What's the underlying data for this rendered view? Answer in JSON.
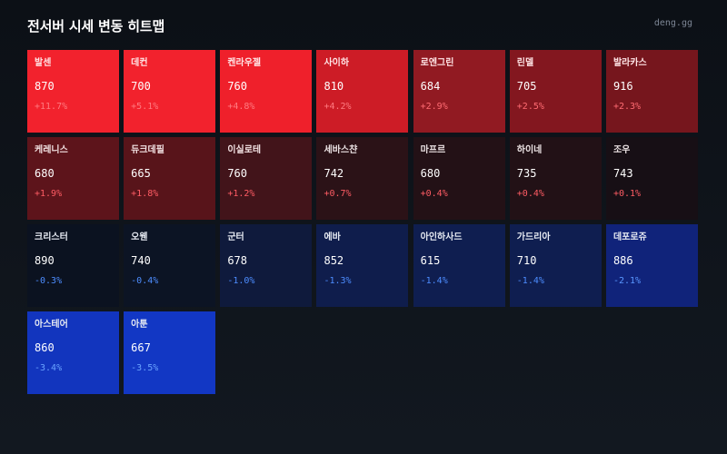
{
  "header": {
    "title": "전서버 시세 변동 히트맵",
    "brand": "deng.gg"
  },
  "cells": [
    {
      "name": "발센",
      "price": "870",
      "change": "+11.7%",
      "bg": "#f2222d",
      "name_color": "#ffe5e6",
      "price_color": "#ffffff",
      "change_color": "#ff7a80"
    },
    {
      "name": "데컨",
      "price": "700",
      "change": "+5.1%",
      "bg": "#f2222d",
      "name_color": "#ffe5e6",
      "price_color": "#ffffff",
      "change_color": "#ff7a80"
    },
    {
      "name": "켄라우젤",
      "price": "760",
      "change": "+4.8%",
      "bg": "#ef202b",
      "name_color": "#ffe5e6",
      "price_color": "#ffffff",
      "change_color": "#ff7a80"
    },
    {
      "name": "사이하",
      "price": "810",
      "change": "+4.2%",
      "bg": "#cd1c26",
      "name_color": "#ffe5e6",
      "price_color": "#ffffff",
      "change_color": "#ff7a80"
    },
    {
      "name": "로엔그린",
      "price": "684",
      "change": "+2.9%",
      "bg": "#911a22",
      "name_color": "#ffe5e6",
      "price_color": "#ffffff",
      "change_color": "#ff6b72"
    },
    {
      "name": "린델",
      "price": "705",
      "change": "+2.5%",
      "bg": "#83171f",
      "name_color": "#ffe5e6",
      "price_color": "#ffffff",
      "change_color": "#ff6b72"
    },
    {
      "name": "발라카스",
      "price": "916",
      "change": "+2.3%",
      "bg": "#76161d",
      "name_color": "#ffe5e6",
      "price_color": "#ffffff",
      "change_color": "#ff6b72"
    },
    {
      "name": "케레니스",
      "price": "680",
      "change": "+1.9%",
      "bg": "#5d141b",
      "name_color": "#f3e2e3",
      "price_color": "#ffffff",
      "change_color": "#ff5c64"
    },
    {
      "name": "듀크데필",
      "price": "665",
      "change": "+1.8%",
      "bg": "#58141a",
      "name_color": "#f3e2e3",
      "price_color": "#ffffff",
      "change_color": "#ff5c64"
    },
    {
      "name": "이실로테",
      "price": "760",
      "change": "+1.2%",
      "bg": "#42141a",
      "name_color": "#f3e2e3",
      "price_color": "#ffffff",
      "change_color": "#ff5c64"
    },
    {
      "name": "세바스챤",
      "price": "742",
      "change": "+0.7%",
      "bg": "#2b1217",
      "name_color": "#ece3e4",
      "price_color": "#ffffff",
      "change_color": "#ff5c64"
    },
    {
      "name": "마프르",
      "price": "680",
      "change": "+0.4%",
      "bg": "#231116",
      "name_color": "#ece3e4",
      "price_color": "#ffffff",
      "change_color": "#ff5c64"
    },
    {
      "name": "하이네",
      "price": "735",
      "change": "+0.4%",
      "bg": "#221116",
      "name_color": "#ece3e4",
      "price_color": "#ffffff",
      "change_color": "#ff5c64"
    },
    {
      "name": "조우",
      "price": "743",
      "change": "+0.1%",
      "bg": "#170f15",
      "name_color": "#ece3e4",
      "price_color": "#ffffff",
      "change_color": "#ff5c64"
    },
    {
      "name": "크리스터",
      "price": "890",
      "change": "-0.3%",
      "bg": "#0b1220",
      "name_color": "#e6eaf2",
      "price_color": "#ffffff",
      "change_color": "#4d8dff"
    },
    {
      "name": "오웬",
      "price": "740",
      "change": "-0.4%",
      "bg": "#0c1424",
      "name_color": "#e6eaf2",
      "price_color": "#ffffff",
      "change_color": "#4d8dff"
    },
    {
      "name": "군터",
      "price": "678",
      "change": "-1.0%",
      "bg": "#0f1a3c",
      "name_color": "#e6eaf2",
      "price_color": "#ffffff",
      "change_color": "#4d8dff"
    },
    {
      "name": "에바",
      "price": "852",
      "change": "-1.3%",
      "bg": "#0f1d4c",
      "name_color": "#e6eaf2",
      "price_color": "#ffffff",
      "change_color": "#4d8dff"
    },
    {
      "name": "아인하사드",
      "price": "615",
      "change": "-1.4%",
      "bg": "#0f1e50",
      "name_color": "#e6eaf2",
      "price_color": "#ffffff",
      "change_color": "#4d8dff"
    },
    {
      "name": "가드리아",
      "price": "710",
      "change": "-1.4%",
      "bg": "#0f1e50",
      "name_color": "#e6eaf2",
      "price_color": "#ffffff",
      "change_color": "#4d8dff"
    },
    {
      "name": "데포로쥬",
      "price": "886",
      "change": "-2.1%",
      "bg": "#10237a",
      "name_color": "#e6eaf2",
      "price_color": "#ffffff",
      "change_color": "#5a97ff"
    },
    {
      "name": "아스테어",
      "price": "860",
      "change": "-3.4%",
      "bg": "#1235be",
      "name_color": "#e6eaf2",
      "price_color": "#ffffff",
      "change_color": "#6aa3ff"
    },
    {
      "name": "아툰",
      "price": "667",
      "change": "-3.5%",
      "bg": "#1237c4",
      "name_color": "#e6eaf2",
      "price_color": "#ffffff",
      "change_color": "#6aa3ff"
    }
  ]
}
